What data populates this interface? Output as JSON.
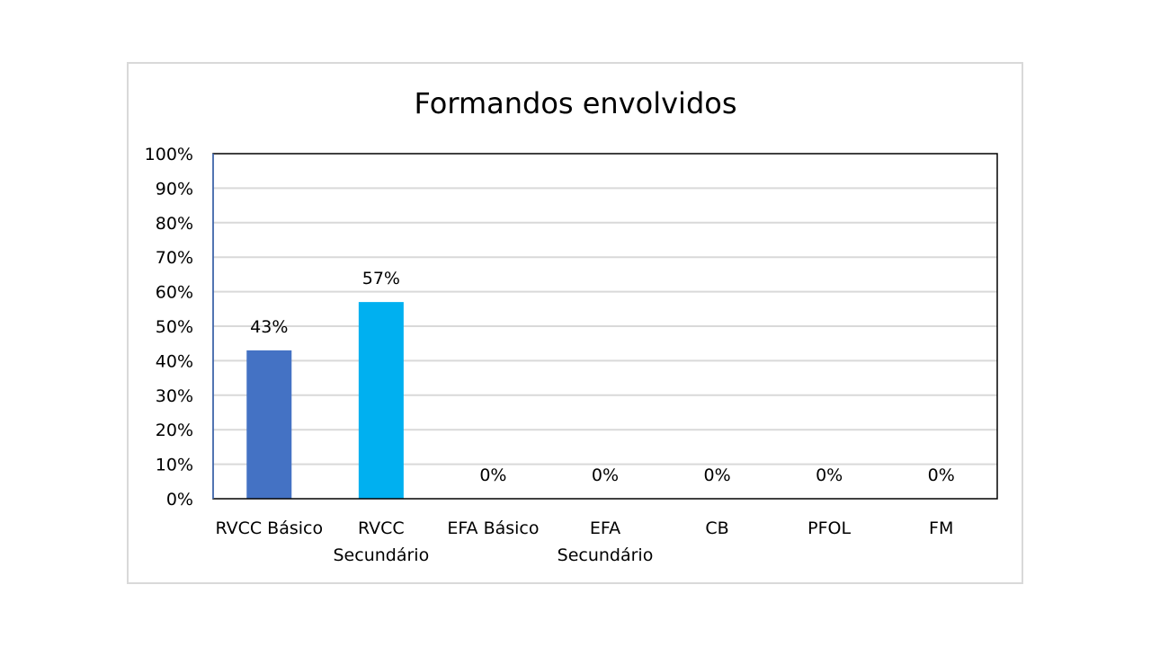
{
  "chart_data": {
    "type": "bar",
    "title": "Formandos envolvidos",
    "categories": [
      [
        "RVCC Básico"
      ],
      [
        "RVCC",
        "Secundário"
      ],
      [
        "EFA Básico"
      ],
      [
        "EFA",
        "Secundário"
      ],
      [
        "CB"
      ],
      [
        "PFOL"
      ],
      [
        "FM"
      ]
    ],
    "values": [
      43,
      57,
      0,
      0,
      0,
      0,
      0
    ],
    "data_labels": [
      "43%",
      "57%",
      "0%",
      "0%",
      "0%",
      "0%",
      "0%"
    ],
    "bar_colors": [
      "#4472c4",
      "#00b0f0",
      "#4472c4",
      "#4472c4",
      "#4472c4",
      "#4472c4",
      "#4472c4"
    ],
    "ylim": [
      0,
      100
    ],
    "yticks": [
      0,
      10,
      20,
      30,
      40,
      50,
      60,
      70,
      80,
      90,
      100
    ],
    "ytick_labels": [
      "0%",
      "10%",
      "20%",
      "30%",
      "40%",
      "50%",
      "60%",
      "70%",
      "80%",
      "90%",
      "100%"
    ],
    "grid": true,
    "grid_color": "#d9d9d9",
    "legend": "none",
    "xlabel": "",
    "ylabel": ""
  }
}
